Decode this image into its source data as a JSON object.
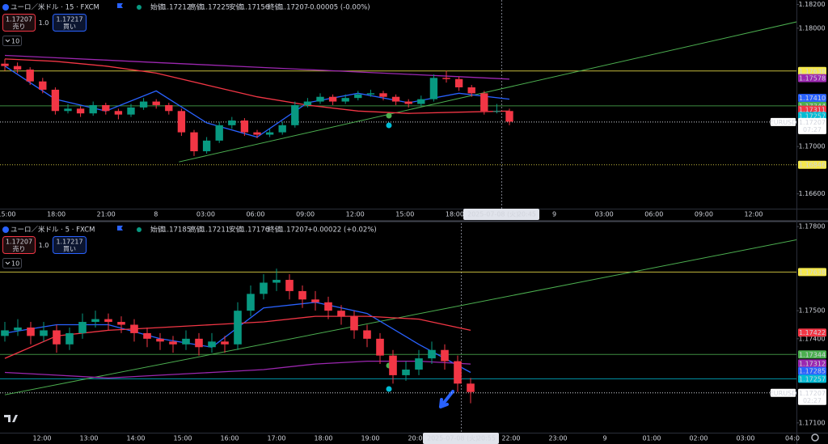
{
  "panels": [
    {
      "header": {
        "symbol": "ユーロ／米ドル · 15 · FXCM",
        "open_label": "始値",
        "open": 1.17212,
        "high_label": "高値",
        "high": 1.17225,
        "low_label": "安値",
        "low": 1.17156,
        "close_label": "終値",
        "close": 1.17207,
        "change": "-0.00005 (-0.00%)",
        "direction": "down"
      },
      "trade": {
        "sell_price": 1.17207,
        "sell_label": "売り",
        "quantity": "1.0",
        "buy_price": 1.17217,
        "buy_label": "買い"
      },
      "indicator_count": "10",
      "ylim": [
        1.16475,
        1.18238
      ],
      "yticks": [
        {
          "value": 1.182,
          "label": "1.18200"
        },
        {
          "value": 1.18,
          "label": "1.18000"
        },
        {
          "value": 1.17,
          "label": "1.17000"
        },
        {
          "value": 1.166,
          "label": "1.16600"
        }
      ],
      "time_labels": [
        "15:00",
        "18:00",
        "21:00",
        "8",
        "03:00",
        "06:00",
        "09:00",
        "12:00",
        "15:00",
        "18:00",
        null,
        "9",
        "03:00",
        "06:00",
        "09:00",
        "12:00"
      ],
      "crosshair": {
        "date": "2025-07-08 (火)",
        "time": "20:45"
      },
      "candles": [
        [
          1.177,
          1.1774,
          1.1764,
          1.1768
        ],
        [
          1.1768,
          1.1771,
          1.1762,
          1.1765
        ],
        [
          1.1765,
          1.1767,
          1.1752,
          1.1755
        ],
        [
          1.1755,
          1.1758,
          1.1745,
          1.1748
        ],
        [
          1.1748,
          1.175,
          1.1727,
          1.173
        ],
        [
          1.173,
          1.1736,
          1.1728,
          1.1732
        ],
        [
          1.1732,
          1.1734,
          1.1725,
          1.1728
        ],
        [
          1.1728,
          1.1738,
          1.1726,
          1.1735
        ],
        [
          1.1735,
          1.1737,
          1.1727,
          1.173
        ],
        [
          1.173,
          1.1732,
          1.1723,
          1.1727
        ],
        [
          1.1727,
          1.1736,
          1.1725,
          1.1733
        ],
        [
          1.1733,
          1.1741,
          1.1731,
          1.1738
        ],
        [
          1.1738,
          1.174,
          1.1732,
          1.1735
        ],
        [
          1.1735,
          1.1737,
          1.1727,
          1.173
        ],
        [
          1.173,
          1.1732,
          1.1709,
          1.1712
        ],
        [
          1.1712,
          1.1714,
          1.1692,
          1.1696
        ],
        [
          1.1696,
          1.1708,
          1.1694,
          1.1705
        ],
        [
          1.1705,
          1.1721,
          1.1703,
          1.1718
        ],
        [
          1.1718,
          1.1725,
          1.1715,
          1.1722
        ],
        [
          1.1722,
          1.1724,
          1.1709,
          1.1712
        ],
        [
          1.1712,
          1.1714,
          1.1707,
          1.171
        ],
        [
          1.171,
          1.1715,
          1.1708,
          1.1712
        ],
        [
          1.1712,
          1.1721,
          1.171,
          1.1718
        ],
        [
          1.1718,
          1.1738,
          1.1716,
          1.1735
        ],
        [
          1.1735,
          1.1741,
          1.1733,
          1.1738
        ],
        [
          1.1738,
          1.1745,
          1.1736,
          1.1742
        ],
        [
          1.1742,
          1.1744,
          1.1735,
          1.1738
        ],
        [
          1.1738,
          1.1744,
          1.1736,
          1.1741
        ],
        [
          1.1741,
          1.1747,
          1.1739,
          1.1744
        ],
        [
          1.1744,
          1.1748,
          1.1742,
          1.1745
        ],
        [
          1.1745,
          1.1747,
          1.1739,
          1.1742
        ],
        [
          1.1742,
          1.1744,
          1.1735,
          1.1738
        ],
        [
          1.1738,
          1.174,
          1.1733,
          1.1736
        ],
        [
          1.1736,
          1.1743,
          1.1734,
          1.174
        ],
        [
          1.174,
          1.1761,
          1.1738,
          1.1758
        ],
        [
          1.1758,
          1.1764,
          1.1754,
          1.1757
        ],
        [
          1.1757,
          1.1759,
          1.1747,
          1.175
        ],
        [
          1.175,
          1.1752,
          1.1742,
          1.1745
        ],
        [
          1.1745,
          1.1747,
          1.1727,
          1.173
        ],
        [
          1.173,
          1.1736,
          1.1728,
          1.173
        ],
        [
          1.173,
          1.1732,
          1.1718,
          1.1721
        ]
      ],
      "moving_averages": [
        {
          "color": "#2962ff",
          "x": [
            0,
            4,
            8,
            12,
            16,
            20,
            24,
            28,
            32,
            36,
            40
          ],
          "values": [
            1.1768,
            1.174,
            1.173,
            1.1747,
            1.172,
            1.1708,
            1.1737,
            1.1745,
            1.1737,
            1.1745,
            1.174
          ]
        },
        {
          "color": "#f23645",
          "x": [
            0,
            4,
            8,
            12,
            16,
            20,
            24,
            28,
            32,
            36,
            40
          ],
          "values": [
            1.1774,
            1.1772,
            1.1768,
            1.1762,
            1.1752,
            1.1742,
            1.1735,
            1.173,
            1.1728,
            1.1729,
            1.173
          ]
        },
        {
          "color": "#9c27b0",
          "x": [
            0,
            4,
            8,
            12,
            16,
            20,
            24,
            28,
            32,
            36,
            40
          ],
          "values": [
            1.1777,
            1.1775,
            1.1773,
            1.1771,
            1.1769,
            1.1767,
            1.1765,
            1.1763,
            1.1761,
            1.1759,
            1.1757
          ]
        }
      ],
      "trendline": {
        "color": "#4caf50",
        "x": [
          13.8,
          64.7
        ],
        "y": [
          1.1687,
          1.181
        ]
      },
      "price_tags": [
        {
          "value": 1.17638,
          "color": "#f5e94c",
          "line": "solid"
        },
        {
          "value": 1.17578,
          "color": "#9c27b0"
        },
        {
          "value": 1.1741,
          "label": "1.17410",
          "color": "#2962ff"
        },
        {
          "value": 1.17344,
          "color": "#4caf50",
          "line": "solid"
        },
        {
          "value": 1.17311,
          "color": "#f23645"
        },
        {
          "value": 1.17257,
          "color": "#00bcd4"
        },
        {
          "value": 1.16846,
          "color": "#f5e94c",
          "line": "dotted"
        }
      ],
      "symbol_tag": "EURUSD",
      "last_price": {
        "value": 1.17207,
        "countdown": "07:27"
      }
    },
    {
      "header": {
        "symbol": "ユーロ／米ドル · 5 · FXCM",
        "open_label": "始値",
        "open": 1.17185,
        "high_label": "高値",
        "high": 1.17211,
        "low_label": "安値",
        "low": 1.17176,
        "close_label": "終値",
        "close": 1.17207,
        "change": "+0.00022 (+0.02%)",
        "direction": "up"
      },
      "trade": {
        "sell_price": 1.17207,
        "sell_label": "売り",
        "quantity": "1.0",
        "buy_price": 1.17217,
        "buy_label": "買い"
      },
      "indicator_count": "10",
      "ylim": [
        1.17065,
        1.17812
      ],
      "yticks": [
        {
          "value": 1.178,
          "label": "1.17800"
        },
        {
          "value": 1.175,
          "label": "1.17500"
        },
        {
          "value": 1.174,
          "label": "1.17400"
        },
        {
          "value": 1.171,
          "label": "1.17100"
        }
      ],
      "time_labels": [
        "12:00",
        "13:00",
        "14:00",
        "15:00",
        "16:00",
        "17:00",
        "18:00",
        "19:00",
        "20:00",
        null,
        "22:00",
        "23:00",
        "9",
        "01:00",
        "02:00",
        "03:00",
        "04:0"
      ],
      "crosshair": {
        "date": "2025-07-08 (火)",
        "time": "20:55"
      },
      "candles": [
        [
          1.1741,
          1.1746,
          1.1739,
          1.1743
        ],
        [
          1.1743,
          1.1747,
          1.1741,
          1.1744
        ],
        [
          1.1744,
          1.1746,
          1.1738,
          1.1741
        ],
        [
          1.1741,
          1.1746,
          1.1739,
          1.1743
        ],
        [
          1.1743,
          1.1745,
          1.1735,
          1.1738
        ],
        [
          1.1738,
          1.1744,
          1.1736,
          1.1742
        ],
        [
          1.1742,
          1.1749,
          1.174,
          1.1746
        ],
        [
          1.1746,
          1.175,
          1.1744,
          1.1747
        ],
        [
          1.1747,
          1.1749,
          1.1743,
          1.1746
        ],
        [
          1.1746,
          1.1748,
          1.1742,
          1.1745
        ],
        [
          1.1745,
          1.1747,
          1.1739,
          1.1742
        ],
        [
          1.1742,
          1.1744,
          1.1737,
          1.174
        ],
        [
          1.174,
          1.1742,
          1.1736,
          1.1739
        ],
        [
          1.1739,
          1.1741,
          1.1735,
          1.1738
        ],
        [
          1.1738,
          1.1743,
          1.1736,
          1.174
        ],
        [
          1.174,
          1.1742,
          1.1734,
          1.1737
        ],
        [
          1.1737,
          1.1742,
          1.1735,
          1.1739
        ],
        [
          1.1739,
          1.1741,
          1.1735,
          1.1738
        ],
        [
          1.1738,
          1.1753,
          1.1736,
          1.175
        ],
        [
          1.175,
          1.1759,
          1.1748,
          1.1756
        ],
        [
          1.1756,
          1.1763,
          1.1754,
          1.176
        ],
        [
          1.176,
          1.1765,
          1.1757,
          1.1761
        ],
        [
          1.1761,
          1.1763,
          1.1754,
          1.1757
        ],
        [
          1.1757,
          1.1759,
          1.1751,
          1.1754
        ],
        [
          1.1754,
          1.1757,
          1.175,
          1.1753
        ],
        [
          1.1753,
          1.1755,
          1.1747,
          1.175
        ],
        [
          1.175,
          1.1752,
          1.1745,
          1.1748
        ],
        [
          1.1748,
          1.175,
          1.174,
          1.1743
        ],
        [
          1.1743,
          1.1745,
          1.1737,
          1.174
        ],
        [
          1.174,
          1.1742,
          1.1731,
          1.1734
        ],
        [
          1.1734,
          1.1736,
          1.1724,
          1.1727
        ],
        [
          1.1727,
          1.1732,
          1.1725,
          1.1729
        ],
        [
          1.1729,
          1.1736,
          1.1727,
          1.1733
        ],
        [
          1.1733,
          1.1739,
          1.1731,
          1.1736
        ],
        [
          1.1736,
          1.1738,
          1.1729,
          1.1732
        ],
        [
          1.1732,
          1.1734,
          1.1721,
          1.1724
        ],
        [
          1.1724,
          1.1726,
          1.1717,
          1.1721
        ]
      ],
      "moving_averages": [
        {
          "color": "#2962ff",
          "x": [
            0,
            4,
            8,
            12,
            16,
            20,
            24,
            28,
            32,
            36
          ],
          "values": [
            1.1742,
            1.1745,
            1.1745,
            1.174,
            1.1737,
            1.1751,
            1.1753,
            1.1749,
            1.1738,
            1.1728
          ]
        },
        {
          "color": "#f23645",
          "x": [
            0,
            4,
            8,
            12,
            16,
            20,
            24,
            28,
            32,
            36
          ],
          "values": [
            1.1733,
            1.1741,
            1.1743,
            1.1744,
            1.1745,
            1.1746,
            1.1748,
            1.1748,
            1.1747,
            1.1743
          ]
        },
        {
          "color": "#9c27b0",
          "x": [
            0,
            4,
            8,
            12,
            16,
            20,
            24,
            28,
            32,
            36
          ],
          "values": [
            1.1728,
            1.1727,
            1.1726,
            1.1727,
            1.1728,
            1.1729,
            1.1731,
            1.1732,
            1.1732,
            1.1731
          ]
        }
      ],
      "trendline": {
        "color": "#4caf50",
        "x": [
          0,
          63.1
        ],
        "y": [
          1.172,
          1.1777
        ]
      },
      "price_tags": [
        {
          "value": 1.17638,
          "color": "#f5e94c",
          "line": "solid"
        },
        {
          "value": 1.17422,
          "color": "#f23645"
        },
        {
          "value": 1.17344,
          "color": "#4caf50",
          "line": "solid"
        },
        {
          "value": 1.17312,
          "color": "#9c27b0"
        },
        {
          "value": 1.17285,
          "color": "#2962ff"
        },
        {
          "value": 1.17257,
          "color": "#00bcd4",
          "line": "solid"
        }
      ],
      "symbol_tag": "EURUSD",
      "last_price": {
        "value": 1.17207,
        "countdown": "02:27"
      }
    }
  ]
}
